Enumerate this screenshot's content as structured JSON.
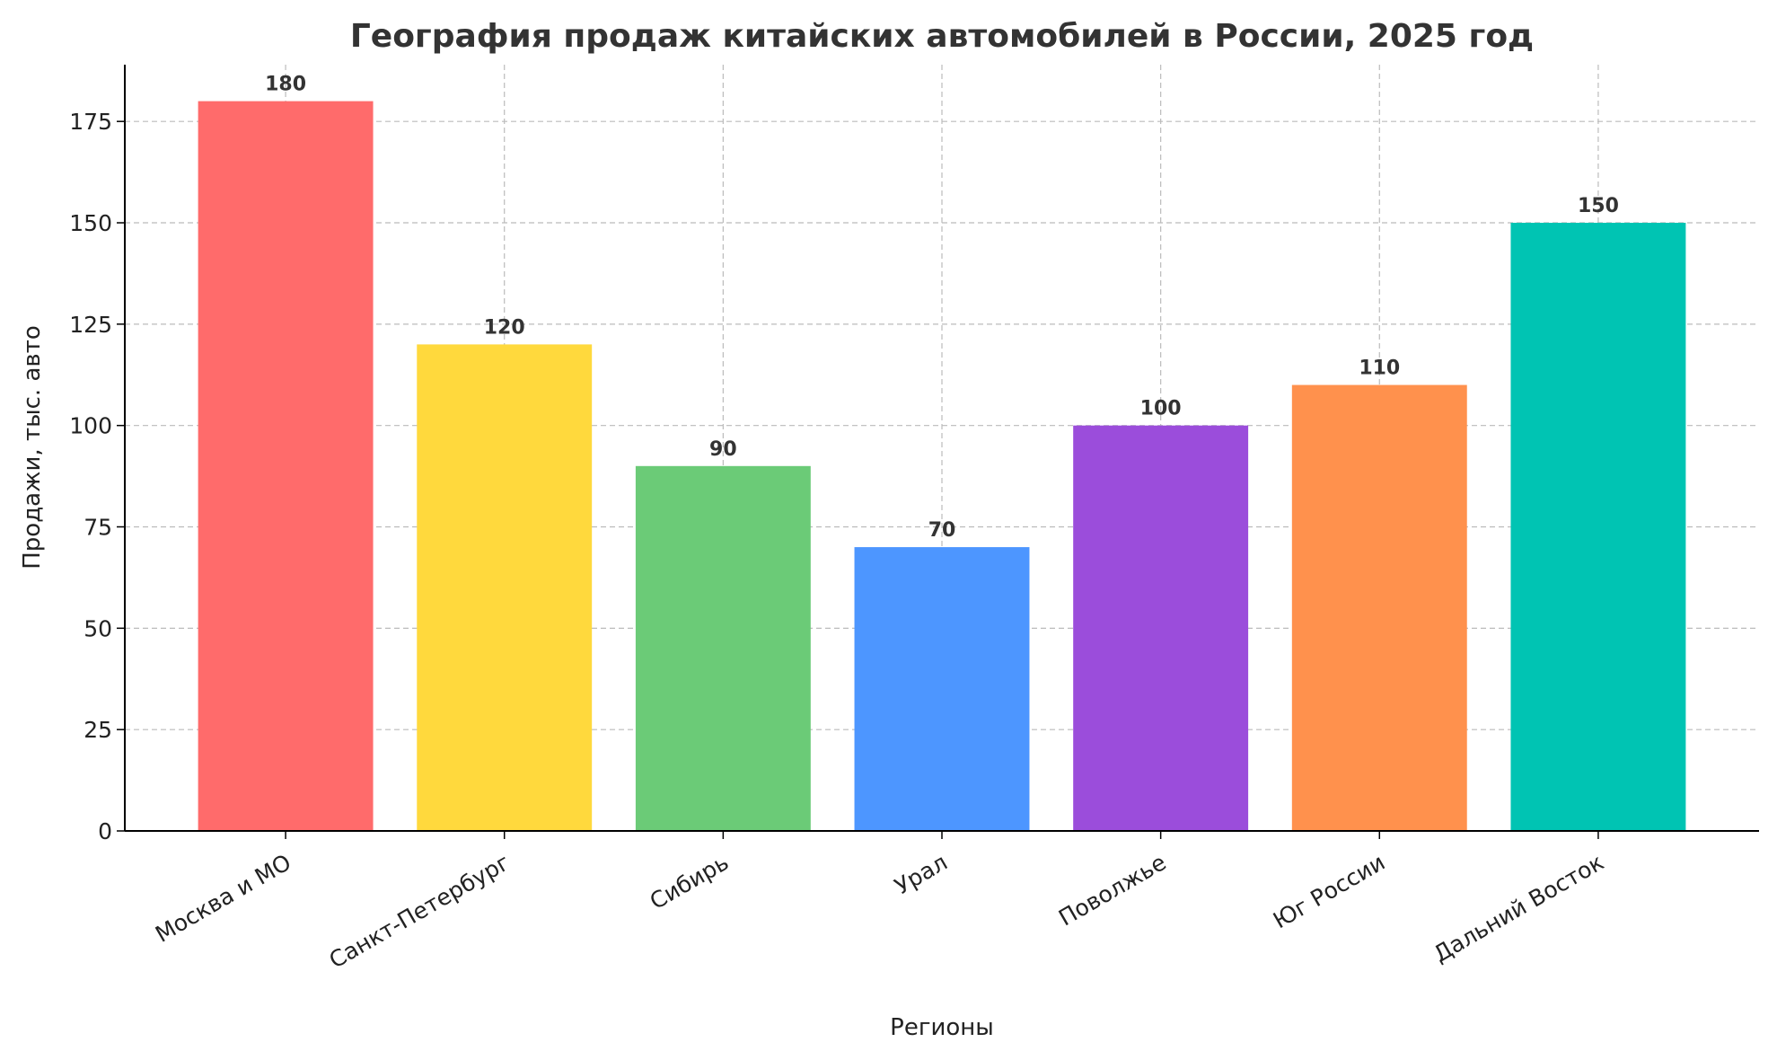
{
  "chart_data": {
    "type": "bar",
    "title": "География продаж китайских автомобилей в России, 2025 год",
    "xlabel": "Регионы",
    "ylabel": "Продажи, тыс. авто",
    "categories": [
      "Москва и МО",
      "Санкт-Петербург",
      "Сибирь",
      "Урал",
      "Поволжье",
      "Юг России",
      "Дальний Восток"
    ],
    "values": [
      180,
      120,
      90,
      70,
      100,
      110,
      150
    ],
    "colors": [
      "#FF6B6B",
      "#FFD93D",
      "#6BCB77",
      "#4D96FF",
      "#9B4DDB",
      "#FF914D",
      "#00C4B3"
    ],
    "yticks": [
      0,
      25,
      50,
      75,
      100,
      125,
      150,
      175
    ],
    "ylim": [
      0,
      189
    ],
    "grid": true,
    "data_labels": true
  }
}
